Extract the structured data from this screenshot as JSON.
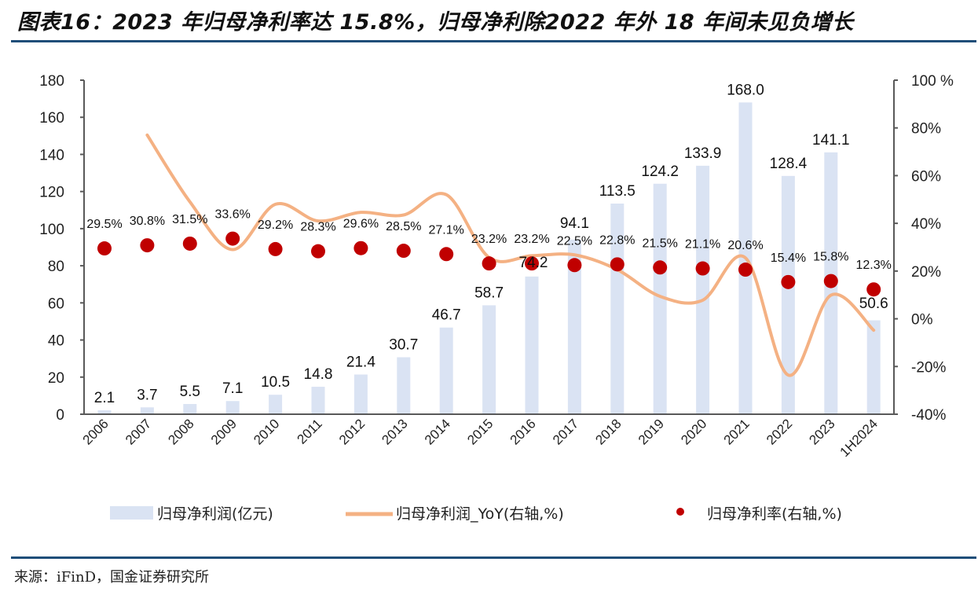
{
  "header": {
    "title": "图表16：2023 年归母净利率达 15.8%，归母净利除2022 年外 18 年间未见负增长"
  },
  "footer": {
    "source": "来源：iFinD，国金证券研究所"
  },
  "colors": {
    "bar": "#dae3f3",
    "line": "#f4b183",
    "dot": "#c00000",
    "axis": "#595959",
    "rule": "#1f4e79"
  },
  "chart_data": {
    "type": "bar+line+scatter",
    "title": "2023 年归母净利率达 15.8%，归母净利除2022 年外 18 年间未见负增长",
    "categories": [
      "2006",
      "2007",
      "2008",
      "2009",
      "2010",
      "2011",
      "2012",
      "2013",
      "2014",
      "2015",
      "2016",
      "2017",
      "2018",
      "2019",
      "2020",
      "2021",
      "2022",
      "2023",
      "1H2024"
    ],
    "left_axis": {
      "ylim": [
        0,
        180
      ],
      "ticks": [
        0,
        20,
        40,
        60,
        80,
        100,
        120,
        140,
        160,
        180
      ],
      "tick_labels": [
        "0",
        "20",
        "40",
        "60",
        "80",
        "100",
        "120",
        "140",
        "160",
        "180"
      ]
    },
    "right_axis": {
      "ylim": [
        -40,
        100
      ],
      "ticks": [
        -40,
        -20,
        0,
        20,
        40,
        60,
        80,
        100
      ],
      "tick_labels": [
        "-40%",
        "-20%",
        "0%",
        "20%",
        "40%",
        "60%",
        "80%",
        "100 %"
      ]
    },
    "series": [
      {
        "name": "归母净利润(亿元)",
        "type": "bar",
        "axis": "left",
        "values": [
          2.1,
          3.7,
          5.5,
          7.1,
          10.5,
          14.8,
          21.4,
          30.7,
          46.7,
          58.7,
          74.2,
          94.1,
          113.5,
          124.2,
          133.9,
          168.0,
          128.4,
          141.1,
          50.6
        ],
        "labels": [
          "2.1",
          "3.7",
          "5.5",
          "7.1",
          "10.5",
          "14.8",
          "21.4",
          "30.7",
          "46.7",
          "58.7",
          "74.2",
          "94.1",
          "113.5",
          "124.2",
          "133.9",
          "168.0",
          "128.4",
          "141.1",
          "50.6"
        ]
      },
      {
        "name": "归母净利润_YoY(右轴,%)",
        "type": "line",
        "axis": "right",
        "values": [
          null,
          77,
          49,
          29,
          48,
          41,
          44.6,
          43.5,
          52,
          25.7,
          26.4,
          26.8,
          20.6,
          9.4,
          7.8,
          25.5,
          -23.6,
          9.9,
          -4.8
        ]
      },
      {
        "name": "归母净利率(右轴,%)",
        "type": "scatter",
        "axis": "right",
        "values": [
          29.5,
          30.8,
          31.5,
          33.6,
          29.2,
          28.3,
          29.6,
          28.5,
          27.1,
          23.2,
          23.2,
          22.5,
          22.8,
          21.5,
          21.1,
          20.6,
          15.4,
          15.8,
          12.3
        ],
        "labels": [
          "29.5%",
          "30.8%",
          "31.5%",
          "33.6%",
          "29.2%",
          "28.3%",
          "29.6%",
          "28.5%",
          "27.1%",
          "23.2%",
          "23.2%",
          "22.5%",
          "22.8%",
          "21.5%",
          "21.1%",
          "20.6%",
          "15.4%",
          "15.8%",
          "12.3%"
        ]
      }
    ],
    "legend": {
      "position": "bottom",
      "items": [
        "归母净利润(亿元)",
        "归母净利润_YoY(右轴,%)",
        "归母净利率(右轴,%)"
      ]
    },
    "grid": false
  }
}
